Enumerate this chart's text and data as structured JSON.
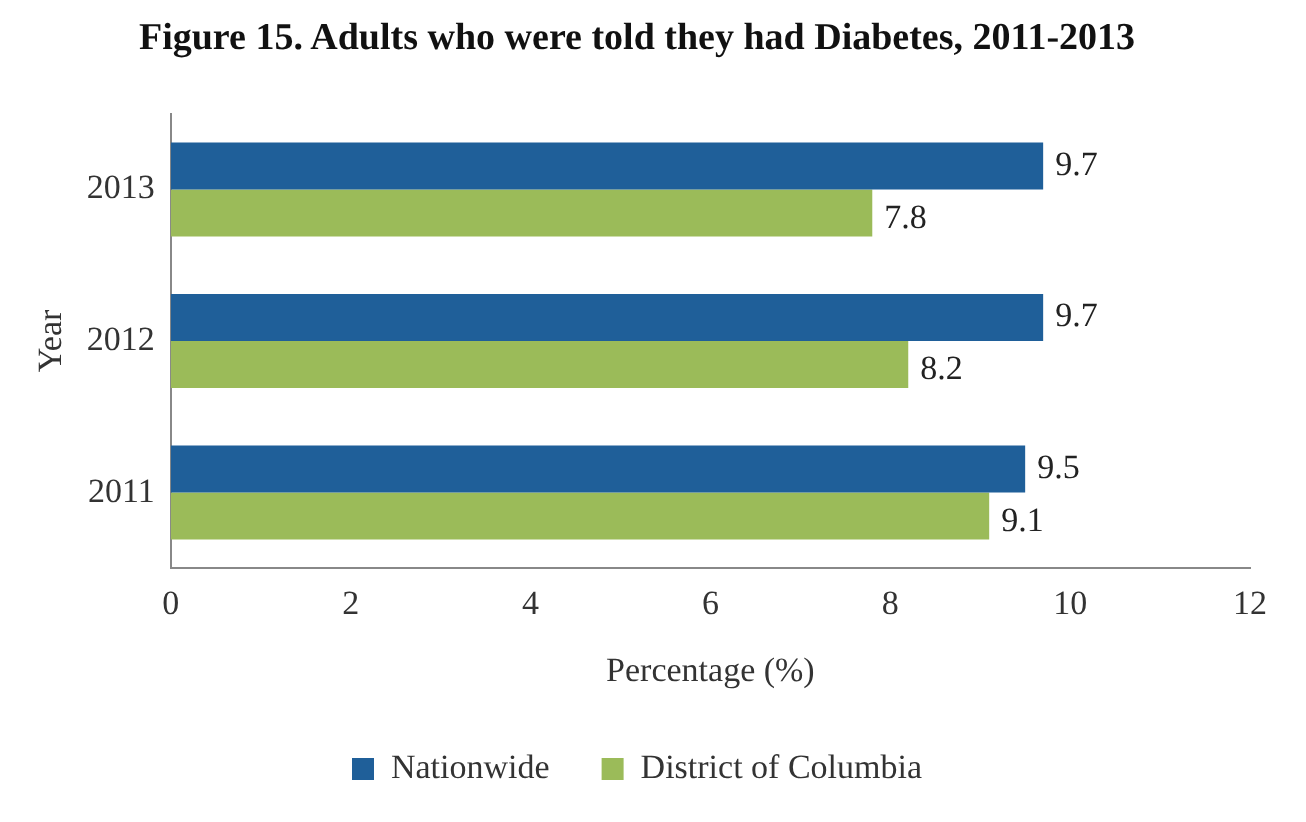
{
  "chart_data": {
    "type": "bar",
    "orientation": "horizontal",
    "title": "Figure 15. Adults who were told they had Diabetes, 2011-2013",
    "xlabel": "Percentage (%)",
    "ylabel": "Year",
    "categories": [
      "2013",
      "2012",
      "2011"
    ],
    "series": [
      {
        "name": "Nationwide",
        "color": "#1f5f99",
        "values": [
          9.7,
          9.7,
          9.5
        ]
      },
      {
        "name": "District of Columbia",
        "color": "#9bbb59",
        "values": [
          7.8,
          8.2,
          9.1
        ]
      }
    ],
    "xlim": [
      0,
      12
    ],
    "xticks": [
      0,
      2,
      4,
      6,
      8,
      10,
      12
    ],
    "grid": false,
    "legend": "bottom",
    "data_labels": true
  }
}
